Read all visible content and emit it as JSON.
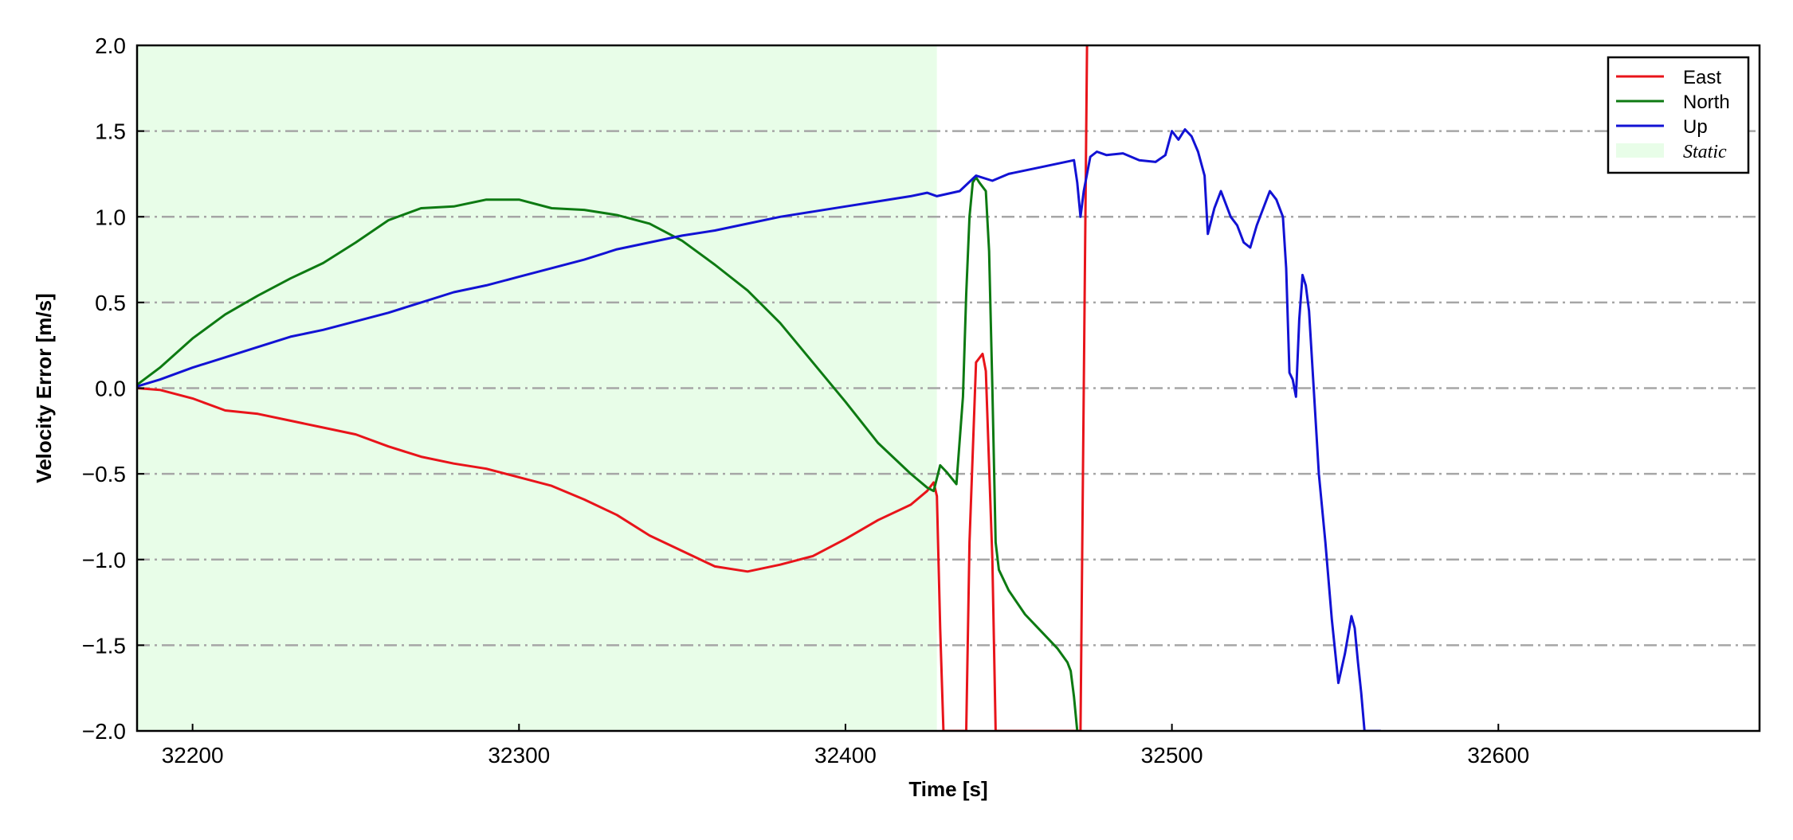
{
  "chart_data": {
    "type": "line",
    "title": "",
    "xlabel": "Time [s]",
    "ylabel": "Velocity Error [m/s]",
    "xlim": [
      32183,
      32680
    ],
    "ylim": [
      -2.0,
      2.0
    ],
    "x_ticks": [
      32200,
      32300,
      32400,
      32500,
      32600
    ],
    "x_tick_labels": [
      "32200",
      "32300",
      "32400",
      "32500",
      "32600"
    ],
    "y_ticks": [
      -2.0,
      -1.5,
      -1.0,
      -0.5,
      0.0,
      0.5,
      1.0,
      1.5,
      2.0
    ],
    "y_tick_labels": [
      "−2.0",
      "−1.5",
      "−1.0",
      "−0.5",
      "0.0",
      "0.5",
      "1.0",
      "1.5",
      "2.0"
    ],
    "grid": "horizontal dash-dot",
    "legend_position": "top-right",
    "static_region": {
      "name": "Static",
      "x_start": 32183,
      "x_end": 32428,
      "color": "#e8fde8"
    },
    "series": [
      {
        "name": "East",
        "color": "#e8141a",
        "x": [
          32183,
          32190,
          32200,
          32210,
          32220,
          32230,
          32240,
          32250,
          32260,
          32270,
          32280,
          32290,
          32300,
          32310,
          32320,
          32330,
          32340,
          32350,
          32360,
          32370,
          32380,
          32390,
          32400,
          32410,
          32420,
          32425,
          32427,
          32428,
          32429,
          32430,
          32437,
          32438,
          32440,
          32442,
          32443,
          32445,
          32446,
          32472,
          32473,
          32474
        ],
        "y": [
          0.0,
          -0.01,
          -0.06,
          -0.13,
          -0.15,
          -0.19,
          -0.23,
          -0.27,
          -0.34,
          -0.4,
          -0.44,
          -0.47,
          -0.52,
          -0.57,
          -0.65,
          -0.74,
          -0.86,
          -0.95,
          -1.04,
          -1.07,
          -1.03,
          -0.98,
          -0.88,
          -0.77,
          -0.68,
          -0.6,
          -0.55,
          -0.63,
          -1.4,
          -2.0,
          -2.0,
          -0.9,
          0.15,
          0.2,
          0.1,
          -1.0,
          -2.0,
          -2.0,
          0.0,
          2.0
        ]
      },
      {
        "name": "North",
        "color": "#0d7a12",
        "x": [
          32183,
          32190,
          32200,
          32210,
          32220,
          32230,
          32240,
          32250,
          32260,
          32270,
          32280,
          32290,
          32300,
          32310,
          32320,
          32330,
          32340,
          32350,
          32360,
          32370,
          32380,
          32390,
          32400,
          32410,
          32420,
          32425,
          32427,
          32429,
          32431,
          32434,
          32436,
          32437,
          32438,
          32439,
          32440,
          32441,
          32443,
          32444,
          32445,
          32446,
          32447,
          32450,
          32455,
          32460,
          32465,
          32468,
          32469,
          32470,
          32471
        ],
        "y": [
          0.02,
          0.12,
          0.29,
          0.43,
          0.54,
          0.64,
          0.73,
          0.85,
          0.98,
          1.05,
          1.06,
          1.1,
          1.1,
          1.05,
          1.04,
          1.01,
          0.96,
          0.86,
          0.72,
          0.57,
          0.38,
          0.15,
          -0.08,
          -0.32,
          -0.5,
          -0.58,
          -0.6,
          -0.45,
          -0.49,
          -0.56,
          -0.05,
          0.55,
          1.0,
          1.2,
          1.23,
          1.2,
          1.15,
          0.8,
          0.0,
          -0.9,
          -1.06,
          -1.18,
          -1.32,
          -1.42,
          -1.52,
          -1.6,
          -1.65,
          -1.8,
          -2.0
        ]
      },
      {
        "name": "Up",
        "color": "#1212d4",
        "x": [
          32183,
          32190,
          32200,
          32210,
          32220,
          32230,
          32240,
          32250,
          32260,
          32270,
          32280,
          32290,
          32300,
          32310,
          32320,
          32330,
          32340,
          32350,
          32360,
          32370,
          32380,
          32390,
          32400,
          32410,
          32420,
          32425,
          32428,
          32435,
          32440,
          32445,
          32450,
          32460,
          32470,
          32471,
          32472,
          32473,
          32475,
          32477,
          32480,
          32485,
          32490,
          32495,
          32498,
          32500,
          32502,
          32504,
          32506,
          32508,
          32510,
          32511,
          32513,
          32515,
          32518,
          32520,
          32522,
          32524,
          32526,
          32528,
          32530,
          32532,
          32534,
          32535,
          32536,
          32537,
          32538,
          32539,
          32540,
          32541,
          32542,
          32545,
          32547,
          32549,
          32551,
          32553,
          32555,
          32556,
          32557,
          32558,
          32559,
          32561,
          32562,
          32564
        ],
        "y": [
          0.01,
          0.05,
          0.12,
          0.18,
          0.24,
          0.3,
          0.34,
          0.39,
          0.44,
          0.5,
          0.56,
          0.6,
          0.65,
          0.7,
          0.75,
          0.81,
          0.85,
          0.89,
          0.92,
          0.96,
          1.0,
          1.03,
          1.06,
          1.09,
          1.12,
          1.14,
          1.12,
          1.15,
          1.24,
          1.21,
          1.25,
          1.29,
          1.33,
          1.2,
          1.0,
          1.15,
          1.35,
          1.38,
          1.36,
          1.37,
          1.33,
          1.32,
          1.36,
          1.5,
          1.45,
          1.51,
          1.47,
          1.38,
          1.24,
          0.9,
          1.05,
          1.15,
          1.0,
          0.95,
          0.85,
          0.82,
          0.95,
          1.05,
          1.15,
          1.1,
          1.0,
          0.7,
          0.09,
          0.05,
          -0.05,
          0.4,
          0.66,
          0.6,
          0.45,
          -0.5,
          -0.9,
          -1.35,
          -1.72,
          -1.55,
          -1.33,
          -1.4,
          -1.6,
          -1.78,
          -2.0,
          -2.0,
          -2.0,
          -2.0
        ]
      }
    ]
  }
}
